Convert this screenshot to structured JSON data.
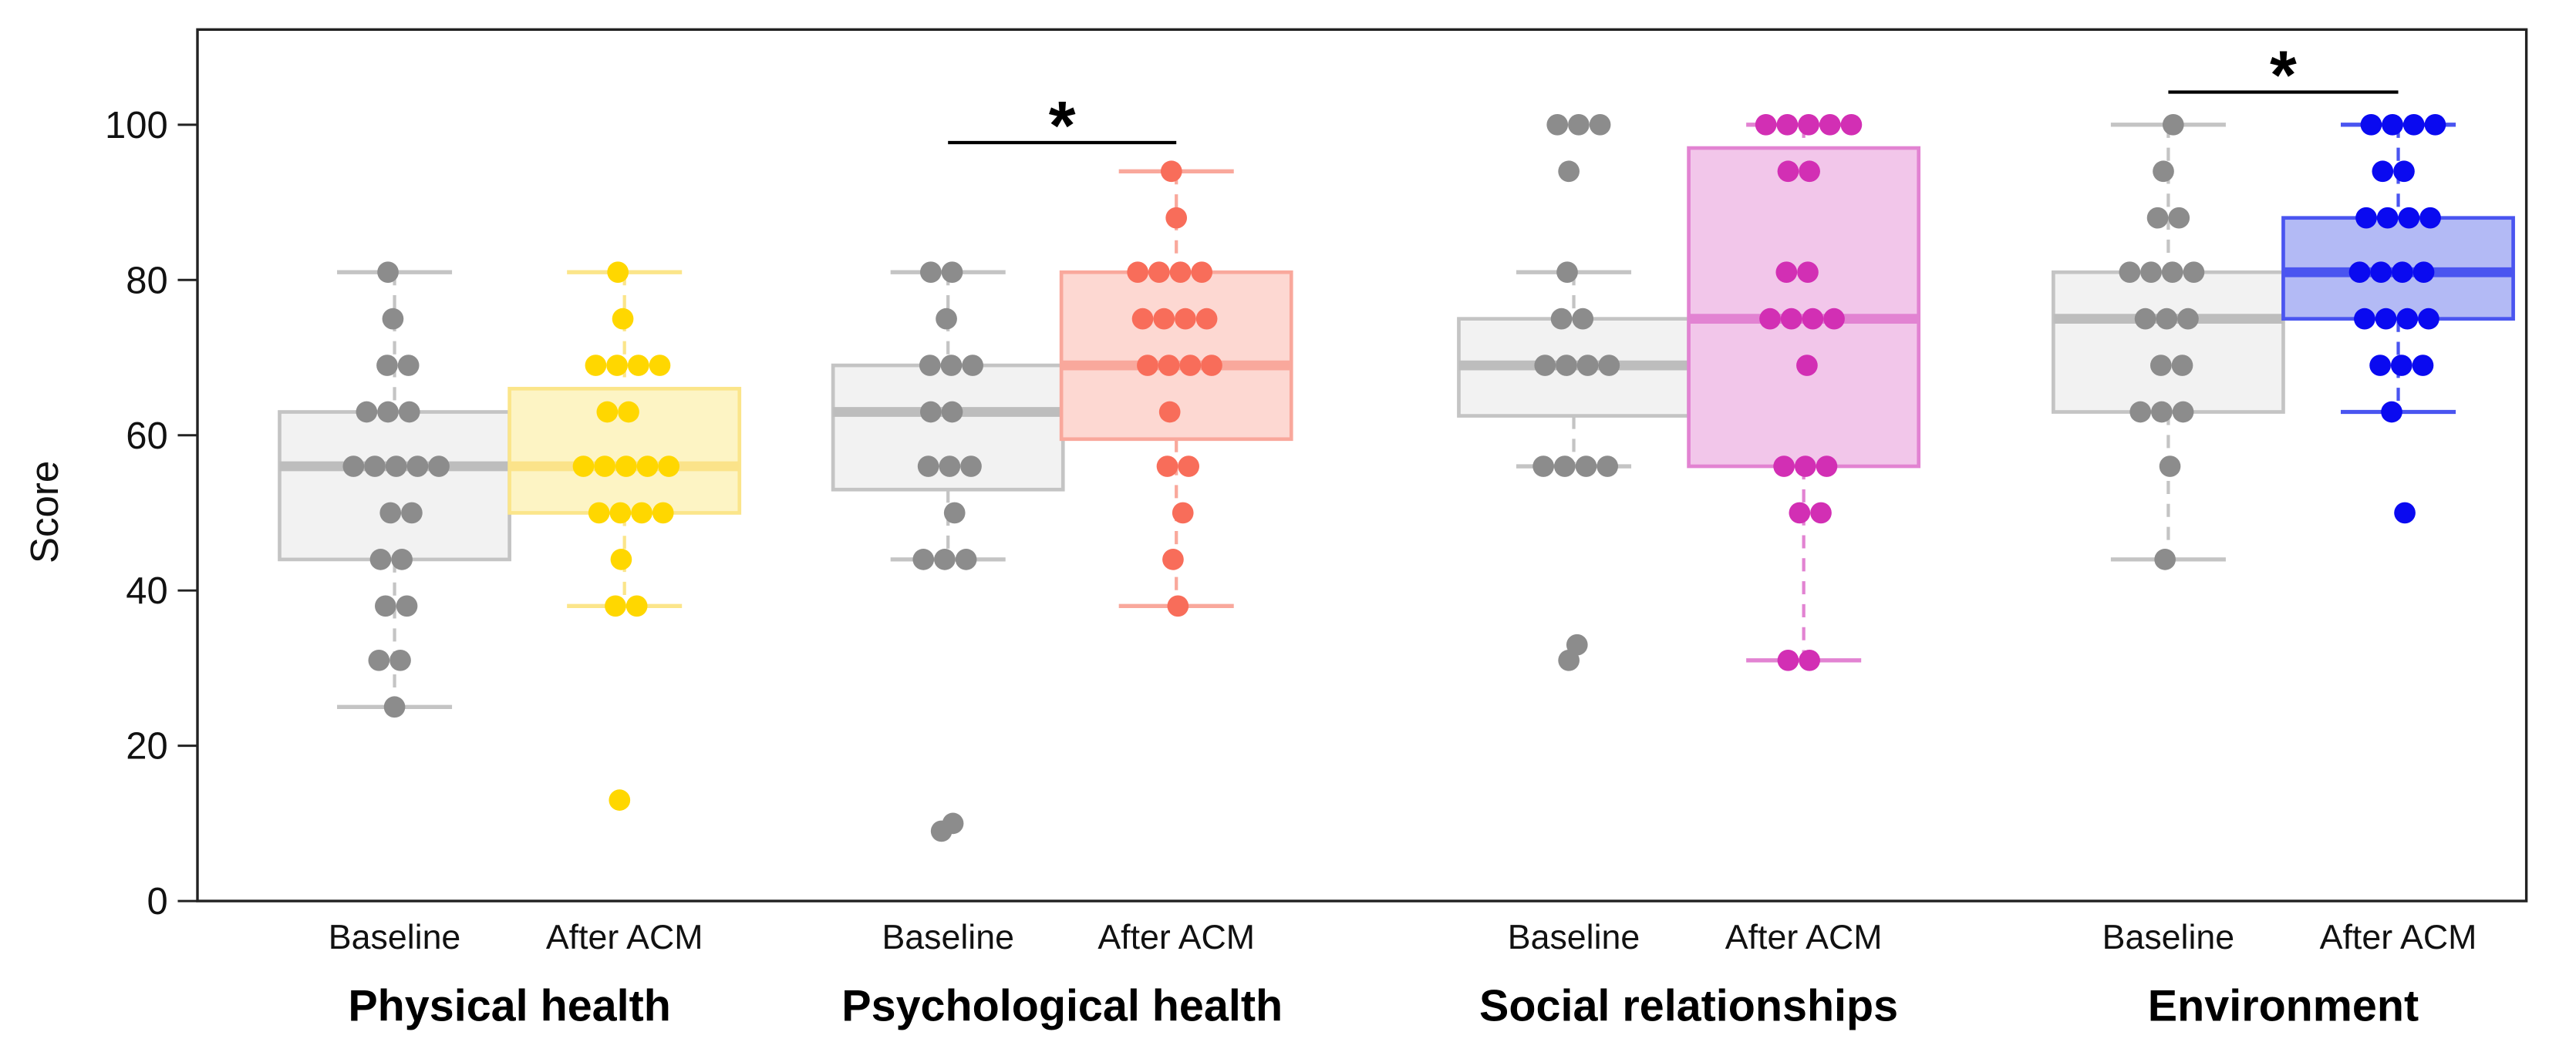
{
  "chart_data": {
    "type": "box",
    "title": "",
    "ylabel": "Score",
    "xlabel": "",
    "ylim": [
      0,
      110
    ],
    "yticks": [
      0,
      20,
      40,
      60,
      80,
      100
    ],
    "grid": false,
    "legend": "none",
    "groups": [
      {
        "name": "Physical health",
        "series": [
          {
            "label": "Baseline",
            "color": "#8c8c8c",
            "fill": "#f2f2f2",
            "stroke": "#c4c4c4",
            "median_color": "#bdbdbd",
            "whisker_low": 25,
            "q1": 44,
            "median": 56,
            "q3": 63,
            "whisker_high": 81,
            "points": [
              81,
              75,
              69,
              69,
              63,
              63,
              63,
              56,
              56,
              56,
              56,
              56,
              50,
              50,
              44,
              44,
              38,
              38,
              31,
              31,
              25
            ]
          },
          {
            "label": "After ACM",
            "color": "#ffd700",
            "fill": "#fdf4c4",
            "stroke": "#fbe58a",
            "median_color": "#fbe38a",
            "whisker_low": 38,
            "q1": 50,
            "median": 56,
            "q3": 66,
            "whisker_high": 81,
            "points": [
              81,
              75,
              69,
              69,
              69,
              69,
              63,
              63,
              56,
              56,
              56,
              56,
              56,
              50,
              50,
              50,
              50,
              44,
              38,
              38,
              13
            ]
          }
        ]
      },
      {
        "name": "Psychological health",
        "series": [
          {
            "label": "Baseline",
            "color": "#8c8c8c",
            "fill": "#f2f2f2",
            "stroke": "#c4c4c4",
            "median_color": "#bdbdbd",
            "whisker_low": 44,
            "q1": 53,
            "median": 63,
            "q3": 69,
            "whisker_high": 81,
            "points": [
              81,
              81,
              75,
              69,
              69,
              69,
              63,
              63,
              56,
              56,
              56,
              50,
              44,
              44,
              44,
              10,
              9
            ]
          },
          {
            "label": "After ACM",
            "color": "#f86d5a",
            "fill": "#fdd8d2",
            "stroke": "#f9a89c",
            "median_color": "#f9a89c",
            "whisker_low": 38,
            "q1": 59.5,
            "median": 69,
            "q3": 81,
            "whisker_high": 94,
            "points": [
              94,
              88,
              81,
              81,
              81,
              81,
              75,
              75,
              75,
              75,
              69,
              69,
              69,
              69,
              63,
              56,
              56,
              50,
              44,
              38
            ]
          }
        ]
      },
      {
        "name": "Social relationships",
        "series": [
          {
            "label": "Baseline",
            "color": "#8c8c8c",
            "fill": "#f2f2f2",
            "stroke": "#c4c4c4",
            "median_color": "#bdbdbd",
            "whisker_low": 56,
            "q1": 62.5,
            "median": 69,
            "q3": 75,
            "whisker_high": 81,
            "points": [
              100,
              100,
              100,
              94,
              81,
              75,
              75,
              69,
              69,
              69,
              69,
              56,
              56,
              56,
              56,
              33,
              31
            ]
          },
          {
            "label": "After ACM",
            "color": "#d22fb4",
            "fill": "#f2c6ea",
            "stroke": "#e283d2",
            "median_color": "#e283d2",
            "whisker_low": 31,
            "q1": 56,
            "median": 75,
            "q3": 97,
            "whisker_high": 100,
            "points": [
              100,
              100,
              100,
              100,
              100,
              94,
              94,
              81,
              81,
              75,
              75,
              75,
              75,
              69,
              56,
              56,
              56,
              50,
              50,
              31,
              31
            ]
          }
        ]
      },
      {
        "name": "Environment",
        "series": [
          {
            "label": "Baseline",
            "color": "#8c8c8c",
            "fill": "#f2f2f2",
            "stroke": "#c4c4c4",
            "median_color": "#bdbdbd",
            "whisker_low": 44,
            "q1": 63,
            "median": 75,
            "q3": 81,
            "whisker_high": 100,
            "points": [
              100,
              94,
              88,
              88,
              81,
              81,
              81,
              81,
              75,
              75,
              75,
              69,
              69,
              63,
              63,
              63,
              56,
              44
            ]
          },
          {
            "label": "After ACM",
            "color": "#0a0af0",
            "fill": "#b3baf5",
            "stroke": "#4a55f0",
            "median_color": "#4a55f0",
            "whisker_low": 63,
            "q1": 75,
            "median": 81,
            "q3": 88,
            "whisker_high": 100,
            "points": [
              100,
              100,
              100,
              100,
              94,
              94,
              88,
              88,
              88,
              88,
              81,
              81,
              81,
              81,
              75,
              75,
              75,
              75,
              69,
              69,
              69,
              63,
              50
            ]
          }
        ]
      }
    ],
    "annotations": [
      {
        "text": "*",
        "group": "Psychological health",
        "between": [
          "Baseline",
          "After ACM"
        ],
        "y": 97.7
      },
      {
        "text": "*",
        "group": "Environment",
        "between": [
          "Baseline",
          "After ACM"
        ],
        "y": 104.2
      }
    ]
  }
}
